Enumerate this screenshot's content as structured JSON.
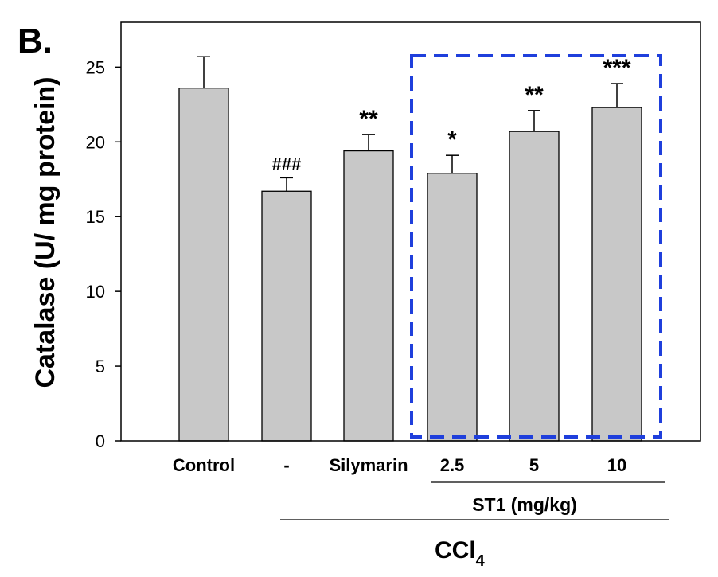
{
  "panel_label": "B.",
  "chart_data": {
    "type": "bar",
    "categories": [
      "Control",
      "-",
      "Silymarin",
      "2.5",
      "5",
      "10"
    ],
    "values": [
      23.6,
      16.7,
      19.4,
      17.9,
      20.7,
      22.3
    ],
    "errors": [
      2.1,
      0.9,
      1.1,
      1.2,
      1.4,
      1.6
    ],
    "annotations": [
      "",
      "###",
      "**",
      "*",
      "**",
      "***"
    ],
    "ylabel": "Catalase (U/ mg protein)",
    "ylim": [
      0,
      28
    ],
    "yticks": [
      0,
      5,
      10,
      15,
      20,
      25
    ],
    "bar_color": "#c8c8c8",
    "grid": false,
    "group_labels": {
      "st1": "ST1 (mg/kg)",
      "ccl4_main": "CCl",
      "ccl4_sub": "4"
    },
    "highlight_box_color": "#1f3fdc"
  }
}
